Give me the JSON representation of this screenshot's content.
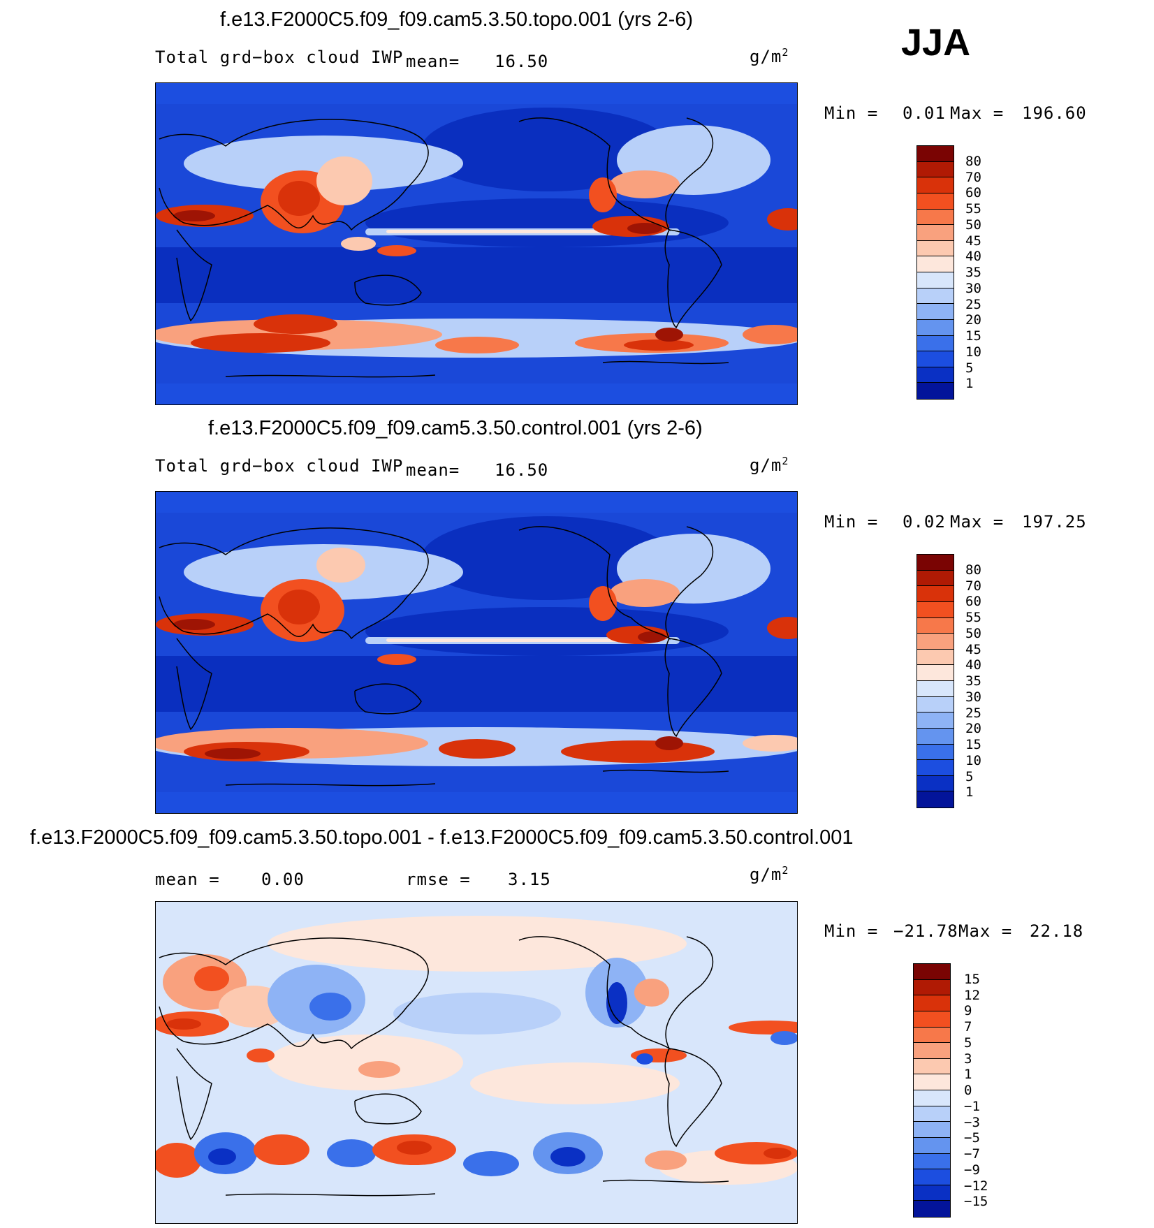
{
  "season": "JJA",
  "panels": [
    {
      "title": "f.e13.F2000C5.f09_f09.cam5.3.50.topo.001 (yrs 2-6)",
      "variable": "Total grd−box cloud IWP",
      "stat_label": "mean=",
      "stat_value": "16.50",
      "units": "g/m",
      "units_exp": "2",
      "min_label": "Min =",
      "min_value": "0.01",
      "max_label": "Max =",
      "max_value": "196.60"
    },
    {
      "title": "f.e13.F2000C5.f09_f09.cam5.3.50.control.001 (yrs 2-6)",
      "variable": "Total grd−box cloud IWP",
      "stat_label": "mean=",
      "stat_value": "16.50",
      "units": "g/m",
      "units_exp": "2",
      "min_label": "Min =",
      "min_value": "0.02",
      "max_label": "Max =",
      "max_value": "197.25"
    },
    {
      "title": "f.e13.F2000C5.f09_f09.cam5.3.50.topo.001 - f.e13.F2000C5.f09_f09.cam5.3.50.control.001",
      "variable": "",
      "stat_label": "mean =",
      "stat_value": "0.00",
      "rmse_label": "rmse =",
      "rmse_value": "3.15",
      "units": "g/m",
      "units_exp": "2",
      "min_label": "Min =",
      "min_value": "−21.78",
      "max_label": "Max =",
      "max_value": "22.18"
    }
  ],
  "colorbars": {
    "absolute": {
      "labels": [
        "80",
        "70",
        "60",
        "55",
        "50",
        "45",
        "40",
        "35",
        "30",
        "25",
        "20",
        "15",
        "10",
        "5",
        "1"
      ],
      "colors": [
        "#7a0403",
        "#b01a04",
        "#d9320a",
        "#f25020",
        "#f7784a",
        "#f9a17e",
        "#fcc9b0",
        "#fde7dc",
        "#d8e6fb",
        "#b8d0f9",
        "#8eb3f5",
        "#6494ef",
        "#3a70ea",
        "#1c4ee0",
        "#0a30c4",
        "#03149a"
      ]
    },
    "difference": {
      "labels": [
        "15",
        "12",
        "9",
        "7",
        "5",
        "3",
        "1",
        "0",
        "−1",
        "−3",
        "−5",
        "−7",
        "−9",
        "−12",
        "−15"
      ],
      "colors": [
        "#7a0403",
        "#b01a04",
        "#d9320a",
        "#f25020",
        "#f7784a",
        "#f9a17e",
        "#fcc9b0",
        "#fde7dc",
        "#d8e6fb",
        "#b8d0f9",
        "#8eb3f5",
        "#6494ef",
        "#3a70ea",
        "#1c4ee0",
        "#0a30c4",
        "#03149a"
      ]
    }
  },
  "map_colors": {
    "ocean_deep": "#0a2fbf",
    "ocean_mid": "#1a48d8",
    "light_blue": "#b8d0f9",
    "pale": "#fde7dc",
    "orange": "#f25020",
    "dark_red": "#9e1404",
    "coast": "#000000"
  }
}
